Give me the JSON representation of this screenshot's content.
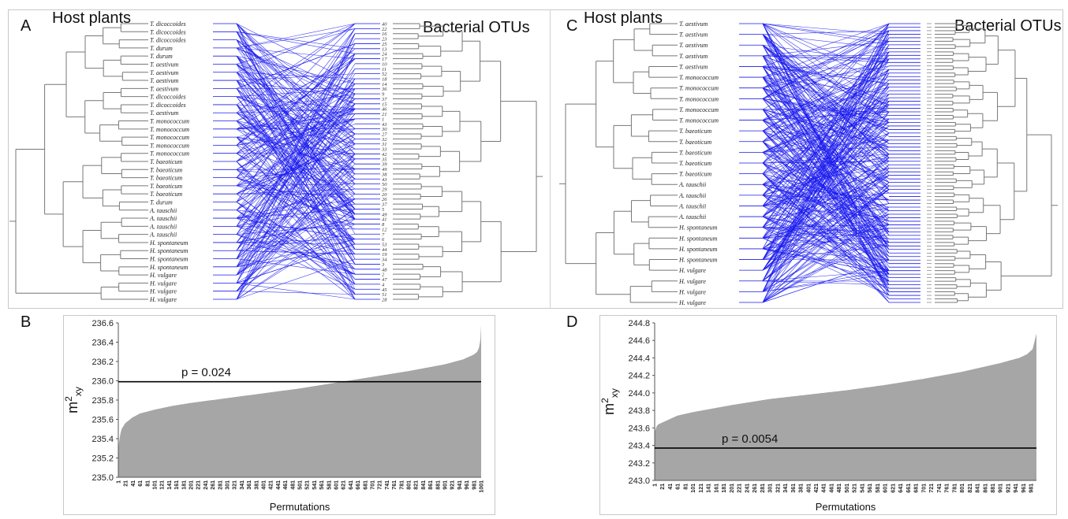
{
  "figure": {
    "panels": [
      {
        "letter": "A",
        "left_title": "Host plants",
        "right_title": "Bacterial OTUs"
      },
      {
        "letter": "B"
      },
      {
        "letter": "C",
        "left_title": "Host plants",
        "right_title": "Bacterial OTUs"
      },
      {
        "letter": "D"
      }
    ],
    "colors": {
      "links": "#1a1aee",
      "tree": "#777777",
      "bars": "#a6a6a6",
      "pline": "#000000"
    }
  },
  "tanglegram_A": {
    "host_labels": [
      "T. dicoccoides",
      "T. dicoccoides",
      "T. dicoccoides",
      "T. durum",
      "T. durum",
      "T. aestivum",
      "T. aestivum",
      "T. aestivum",
      "T. aestivum",
      "T. dicoccoides",
      "T. dicoccoides",
      "T. aestivum",
      "T. monococcum",
      "T. monococcum",
      "T. monococcum",
      "T. monococcum",
      "T. monococcum",
      "T. baeoticum",
      "T. baeoticum",
      "T. baeoticum",
      "T. baeoticum",
      "T. baeoticum",
      "T. durum",
      "A. tauschii",
      "A. tauschii",
      "A. tauschii",
      "A. tauschii",
      "H. spontaneum",
      "H. spontaneum",
      "H. spontaneum",
      "H. spontaneum",
      "H. vulgare",
      "H. vulgare",
      "H. vulgare",
      "H. vulgare"
    ],
    "otu_labels": [
      "40",
      "22",
      "16",
      "23",
      "25",
      "13",
      "24",
      "17",
      "10",
      "11",
      "52",
      "18",
      "14",
      "36",
      "9",
      "37",
      "15",
      "46",
      "21",
      "1",
      "43",
      "30",
      "27",
      "32",
      "31",
      "33",
      "42",
      "35",
      "39",
      "49",
      "38",
      "43",
      "50",
      "29",
      "20",
      "26",
      "37",
      "5",
      "49",
      "41",
      "8",
      "12",
      "7",
      "6",
      "53",
      "44",
      "19",
      "34",
      "3",
      "48",
      "2",
      "47",
      "4",
      "45",
      "51",
      "28"
    ]
  },
  "tanglegram_C": {
    "host_labels": [
      "T. aestivum",
      "T. aestivum",
      "T. aestivum",
      "T. aestivum",
      "T. aestivum",
      "T. monococcum",
      "T. monococcum",
      "T. monococcum",
      "T. monococcum",
      "T. monococcum",
      "T. baeoticum",
      "T. baeoticum",
      "T. baeoticum",
      "T. baeoticum",
      "T. baeoticum",
      "A. tauschii",
      "A. tauschii",
      "A. tauschii",
      "A. tauschii",
      "H. spontaneum",
      "H. spontaneum",
      "H. spontaneum",
      "H. spontaneum",
      "H. vulgare",
      "H. vulgare",
      "H. vulgare",
      "H. vulgare"
    ]
  },
  "chart_data": [
    {
      "type": "area",
      "panel": "B",
      "title": "",
      "xlabel": "Permutations",
      "ylabel": "m²xy",
      "ylim": [
        235.0,
        236.6
      ],
      "yticks": [
        "235.0",
        "235.2",
        "235.4",
        "235.6",
        "235.8",
        "236.0",
        "236.2",
        "236.4",
        "236.6"
      ],
      "xticks": [
        "1",
        "21",
        "41",
        "61",
        "81",
        "101",
        "121",
        "141",
        "161",
        "181",
        "201",
        "221",
        "241",
        "261",
        "281",
        "301",
        "321",
        "341",
        "361",
        "381",
        "401",
        "421",
        "441",
        "461",
        "481",
        "501",
        "521",
        "541",
        "561",
        "581",
        "601",
        "621",
        "641",
        "661",
        "681",
        "701",
        "721",
        "741",
        "761",
        "781",
        "801",
        "821",
        "841",
        "861",
        "881",
        "901",
        "921",
        "941",
        "961",
        "981",
        "1001"
      ],
      "x": [
        1,
        3,
        6,
        10,
        20,
        40,
        60,
        100,
        150,
        200,
        300,
        400,
        500,
        600,
        700,
        800,
        900,
        950,
        980,
        990,
        995,
        1000,
        1001
      ],
      "values": [
        235.28,
        235.36,
        235.44,
        235.5,
        235.56,
        235.62,
        235.66,
        235.7,
        235.74,
        235.77,
        235.82,
        235.87,
        235.92,
        235.98,
        236.04,
        236.1,
        236.17,
        236.22,
        236.27,
        236.3,
        236.34,
        236.45,
        236.58
      ],
      "reference_line": {
        "value": 235.99,
        "label": "p = 0.024"
      }
    },
    {
      "type": "area",
      "panel": "D",
      "title": "",
      "xlabel": "Permutations",
      "ylabel": "m²xy",
      "ylim": [
        243.0,
        244.8
      ],
      "yticks": [
        "243.0",
        "243.2",
        "243.4",
        "243.6",
        "243.8",
        "244.0",
        "244.2",
        "244.4",
        "244.6",
        "244.8"
      ],
      "xticks": [
        "1",
        "21",
        "41",
        "61",
        "81",
        "101",
        "121",
        "141",
        "161",
        "181",
        "201",
        "221",
        "241",
        "261",
        "281",
        "301",
        "321",
        "341",
        "361",
        "381",
        "401",
        "421",
        "441",
        "461",
        "481",
        "501",
        "521",
        "541",
        "561",
        "581",
        "601",
        "621",
        "641",
        "661",
        "681",
        "701",
        "721",
        "741",
        "761",
        "781",
        "801",
        "821",
        "841",
        "861",
        "881",
        "901",
        "921",
        "941",
        "961",
        "981"
      ],
      "x": [
        1,
        3,
        6,
        10,
        20,
        40,
        60,
        100,
        150,
        200,
        300,
        400,
        500,
        600,
        700,
        800,
        900,
        950,
        970,
        985,
        995
      ],
      "values": [
        243.55,
        243.58,
        243.62,
        243.64,
        243.66,
        243.7,
        243.74,
        243.78,
        243.82,
        243.86,
        243.93,
        243.98,
        244.03,
        244.09,
        244.16,
        244.24,
        244.34,
        244.4,
        244.44,
        244.5,
        244.68
      ],
      "reference_line": {
        "value": 243.37,
        "label": "p = 0.0054"
      }
    }
  ]
}
